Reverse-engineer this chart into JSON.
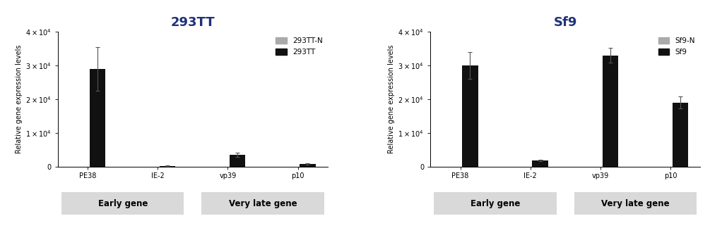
{
  "left_title": "293TT",
  "right_title": "Sf9",
  "ylabel": "Relative gene expression levels",
  "categories": [
    "PE38",
    "IE-2",
    "vp39",
    "p10"
  ],
  "gene_groups": [
    {
      "label": "Early gene",
      "indices": [
        0,
        1
      ]
    },
    {
      "label": "Very late gene",
      "indices": [
        2,
        3
      ]
    }
  ],
  "left_data": {
    "N_values": [
      0,
      0,
      0,
      0
    ],
    "N_errors": [
      0,
      0,
      0,
      0
    ],
    "values": [
      29000,
      180,
      3500,
      750
    ],
    "errors": [
      6500,
      40,
      650,
      120
    ]
  },
  "right_data": {
    "N_values": [
      0,
      0,
      0,
      0
    ],
    "N_errors": [
      0,
      0,
      0,
      0
    ],
    "values": [
      30000,
      1800,
      33000,
      19000
    ],
    "errors": [
      4000,
      250,
      2200,
      1800
    ]
  },
  "left_legend": [
    "293TT-N",
    "293TT"
  ],
  "right_legend": [
    "Sf9-N",
    "Sf9"
  ],
  "bar_width": 0.5,
  "N_color": "#aaaaaa",
  "bar_color": "#111111",
  "title_color": "#1f3178",
  "title_fontsize": 13,
  "ylabel_fontsize": 7,
  "tick_fontsize": 7,
  "legend_fontsize": 7.5,
  "group_label_fontsize": 8.5,
  "group_box_color": "#d9d9d9",
  "ylim_left": [
    0,
    40000
  ],
  "ylim_right": [
    0,
    40000
  ],
  "yticks_left": [
    0,
    10000,
    20000,
    30000,
    40000
  ],
  "yticks_right": [
    0,
    10000,
    20000,
    30000,
    40000
  ]
}
